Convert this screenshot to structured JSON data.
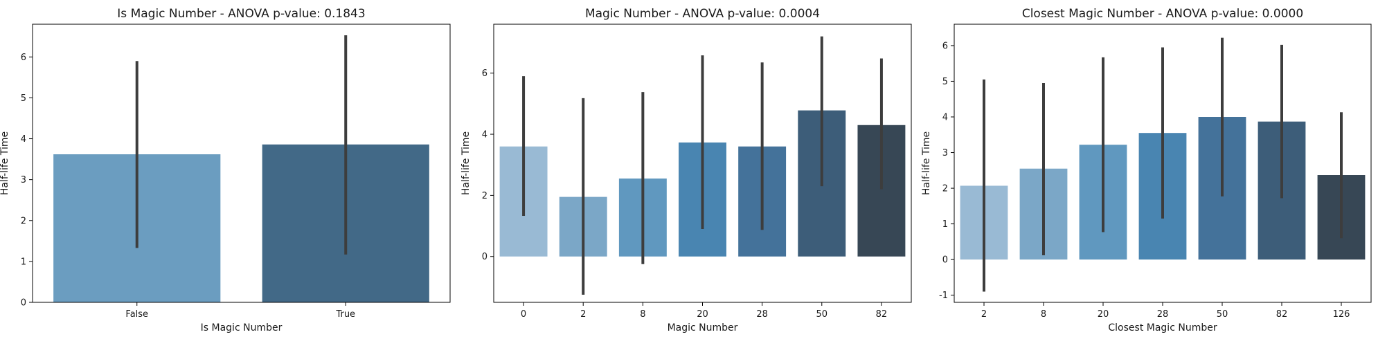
{
  "chart_data": [
    {
      "type": "bar",
      "title": "Is Magic Number - ANOVA p-value: 0.1843",
      "xlabel": "Is Magic Number",
      "ylabel": "Half-life Time",
      "categories": [
        "False",
        "True"
      ],
      "values": [
        3.62,
        3.86
      ],
      "error_low": [
        1.33,
        1.17
      ],
      "error_high": [
        5.9,
        6.53
      ],
      "colors": [
        "#6b9dc0",
        "#426987"
      ],
      "ylim": [
        0,
        6.8
      ],
      "yticks": [
        0,
        1,
        2,
        3,
        4,
        5,
        6
      ],
      "grid": false
    },
    {
      "type": "bar",
      "title": "Magic Number - ANOVA p-value: 0.0004",
      "xlabel": "Magic Number",
      "ylabel": "Half-life Time",
      "categories": [
        "0",
        "2",
        "8",
        "20",
        "28",
        "50",
        "82"
      ],
      "values": [
        3.6,
        1.95,
        2.55,
        3.73,
        3.6,
        4.78,
        4.3
      ],
      "error_low": [
        1.33,
        -1.25,
        -0.25,
        0.9,
        0.87,
        2.3,
        2.2
      ],
      "error_high": [
        5.9,
        5.18,
        5.38,
        6.58,
        6.35,
        7.2,
        6.48
      ],
      "colors": [
        "#99bad4",
        "#7ba7c7",
        "#6098bf",
        "#4985b1",
        "#44729a",
        "#3d5d79",
        "#374755"
      ],
      "ylim": [
        -1.5,
        7.6
      ],
      "yticks": [
        0,
        2,
        4,
        6
      ],
      "grid": false
    },
    {
      "type": "bar",
      "title": "Closest Magic Number - ANOVA p-value: 0.0000",
      "xlabel": "Closest Magic Number",
      "ylabel": "Half-life Time",
      "categories": [
        "2",
        "8",
        "20",
        "28",
        "50",
        "82",
        "126"
      ],
      "values": [
        2.07,
        2.55,
        3.22,
        3.55,
        4.0,
        3.87,
        2.37
      ],
      "error_low": [
        -0.9,
        0.12,
        0.77,
        1.15,
        1.77,
        1.72,
        0.6
      ],
      "error_high": [
        5.05,
        4.95,
        5.67,
        5.95,
        6.22,
        6.02,
        4.13
      ],
      "colors": [
        "#99bad4",
        "#7ba7c7",
        "#6098bf",
        "#4985b1",
        "#44729a",
        "#3d5d79",
        "#374755"
      ],
      "ylim": [
        -1.2,
        6.6
      ],
      "yticks": [
        -1,
        0,
        1,
        2,
        3,
        4,
        5,
        6
      ],
      "grid": false
    }
  ],
  "style": {
    "axis_color": "#000000",
    "error_bar_color": "#3d3d3d",
    "text_color": "#1a1a1a"
  }
}
